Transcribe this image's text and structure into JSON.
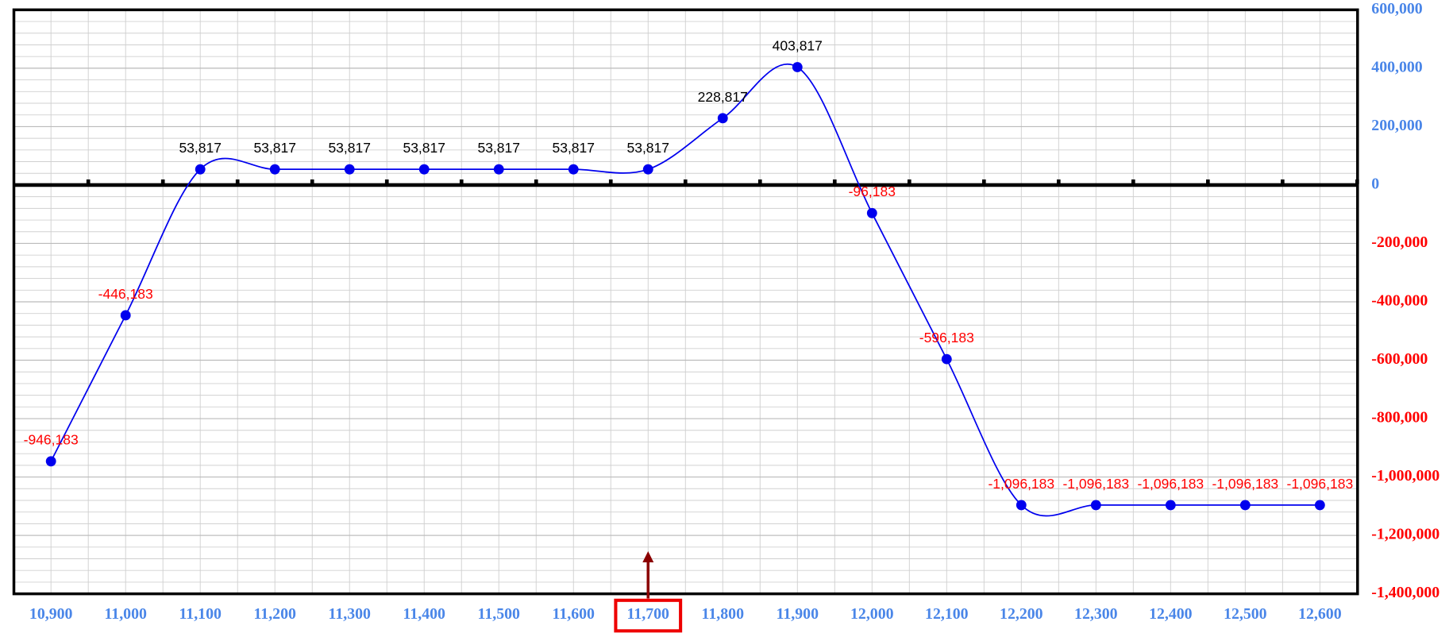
{
  "chart_data": {
    "type": "line",
    "categories": [
      "10,900",
      "11,000",
      "11,100",
      "11,200",
      "11,300",
      "11,400",
      "11,500",
      "11,600",
      "11,700",
      "11,800",
      "11,900",
      "12,000",
      "12,100",
      "12,200",
      "12,300",
      "12,400",
      "12,500",
      "12,600"
    ],
    "values": [
      -946183,
      -446183,
      53817,
      53817,
      53817,
      53817,
      53817,
      53817,
      53817,
      228817,
      403817,
      -96183,
      -596183,
      -1096183,
      -1096183,
      -1096183,
      -1096183,
      -1096183
    ],
    "value_labels": [
      "-946,183",
      "-446,183",
      "53,817",
      "53,817",
      "53,817",
      "53,817",
      "53,817",
      "53,817",
      "53,817",
      "228,817",
      "403,817",
      "-96,183",
      "-596,183",
      "-1,096,183",
      "-1,096,183",
      "-1,096,183",
      "-1,096,183",
      "-1,096,183"
    ],
    "color": "#0000ee",
    "positive_label_color": "#000000",
    "negative_label_color": "#ff0000",
    "positive_tick_color": "#4a86e8",
    "negative_tick_color": "#ff0000",
    "ylim": [
      -1400000,
      600000
    ],
    "yticks": [
      {
        "value": 600000,
        "label": "600,000"
      },
      {
        "value": 400000,
        "label": "400,000"
      },
      {
        "value": 200000,
        "label": "200,000"
      },
      0,
      {
        "value": -200000,
        "label": "-200,000"
      },
      {
        "value": -400000,
        "label": "-400,000"
      },
      {
        "value": -600000,
        "label": "-600,000"
      },
      {
        "value": -800000,
        "label": "-800,000"
      },
      {
        "value": -1000000,
        "label": "-1,000,000"
      },
      {
        "value": -1200000,
        "label": "-1,200,000"
      },
      {
        "value": -1400000,
        "label": "-1,400,000"
      }
    ],
    "y_axis_side": "right",
    "grid": true,
    "smooth": true,
    "highlight": "11,700",
    "highlight_color": "#ee0000"
  }
}
